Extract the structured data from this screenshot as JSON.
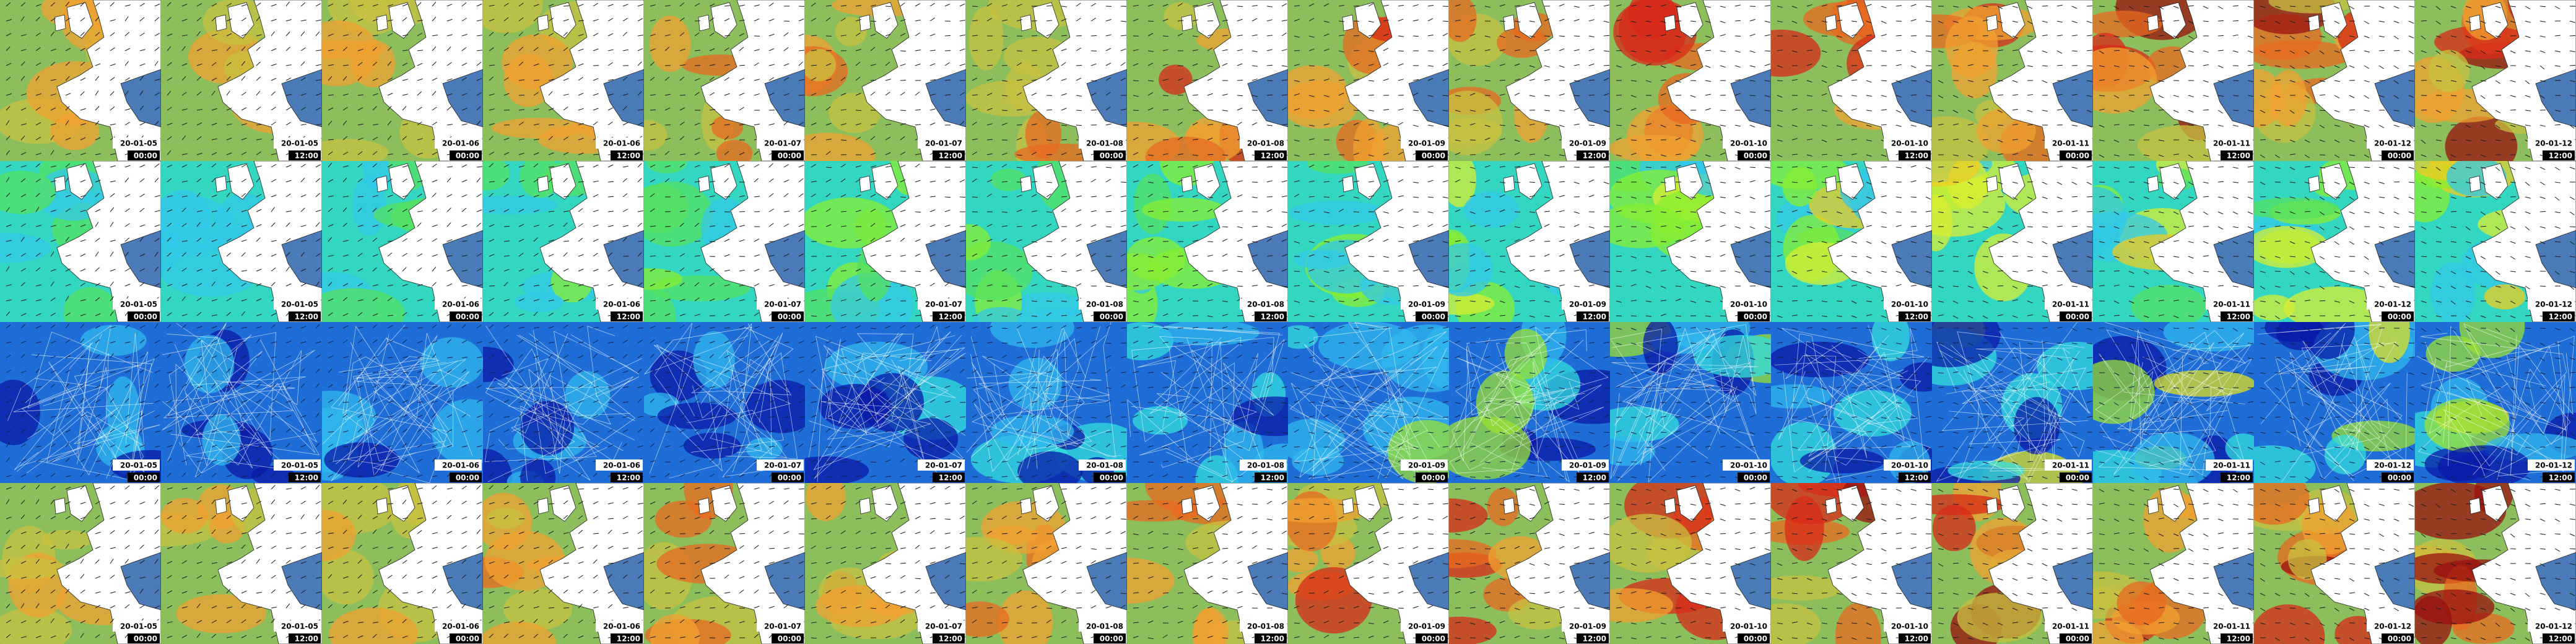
{
  "rows": [
    {
      "tiles": [
        {
          "date": "20-01-05",
          "time": "00:00"
        },
        {
          "date": "20-01-05",
          "time": "12:00"
        },
        {
          "date": "20-01-06",
          "time": "00:00"
        },
        {
          "date": "20-01-06",
          "time": "12:00"
        },
        {
          "date": "20-01-07",
          "time": "00:00"
        },
        {
          "date": "20-01-07",
          "time": "12:00"
        },
        {
          "date": "20-01-08",
          "time": "00:00"
        },
        {
          "date": "20-01-08",
          "time": "12:00"
        },
        {
          "date": "20-01-09",
          "time": "00:00"
        },
        {
          "date": "20-01-09",
          "time": "12:00"
        },
        {
          "date": "20-01-10",
          "time": "00:00"
        },
        {
          "date": "20-01-10",
          "time": "12:00"
        },
        {
          "date": "20-01-11",
          "time": "00:00"
        },
        {
          "date": "20-01-11",
          "time": "12:00"
        },
        {
          "date": "20-01-12",
          "time": "00:00"
        },
        {
          "date": "20-01-12",
          "time": "12:00"
        }
      ]
    },
    {
      "tiles": [
        {
          "date": "20-01-05",
          "time": "00:00"
        },
        {
          "date": "20-01-05",
          "time": "12:00"
        },
        {
          "date": "20-01-06",
          "time": "00:00"
        },
        {
          "date": "20-01-06",
          "time": "12:00"
        },
        {
          "date": "20-01-07",
          "time": "00:00"
        },
        {
          "date": "20-01-07",
          "time": "12:00"
        },
        {
          "date": "20-01-08",
          "time": "00:00"
        },
        {
          "date": "20-01-08",
          "time": "12:00"
        },
        {
          "date": "20-01-09",
          "time": "00:00"
        },
        {
          "date": "20-01-09",
          "time": "12:00"
        },
        {
          "date": "20-01-10",
          "time": "00:00"
        },
        {
          "date": "20-01-10",
          "time": "12:00"
        },
        {
          "date": "20-01-11",
          "time": "00:00"
        },
        {
          "date": "20-01-11",
          "time": "12:00"
        },
        {
          "date": "20-01-12",
          "time": "00:00"
        },
        {
          "date": "20-01-12",
          "time": "12:00"
        }
      ]
    },
    {
      "tiles": [
        {
          "date": "20-01-05",
          "time": "00:00"
        },
        {
          "date": "20-01-05",
          "time": "12:00"
        },
        {
          "date": "20-01-06",
          "time": "00:00"
        },
        {
          "date": "20-01-06",
          "time": "12:00"
        },
        {
          "date": "20-01-07",
          "time": "00:00"
        },
        {
          "date": "20-01-07",
          "time": "12:00"
        },
        {
          "date": "20-01-08",
          "time": "00:00"
        },
        {
          "date": "20-01-08",
          "time": "12:00"
        },
        {
          "date": "20-01-09",
          "time": "00:00"
        },
        {
          "date": "20-01-09",
          "time": "12:00"
        },
        {
          "date": "20-01-10",
          "time": "00:00"
        },
        {
          "date": "20-01-10",
          "time": "12:00"
        },
        {
          "date": "20-01-11",
          "time": "00:00"
        },
        {
          "date": "20-01-11",
          "time": "12:00"
        },
        {
          "date": "20-01-12",
          "time": "00:00"
        },
        {
          "date": "20-01-12",
          "time": "12:00"
        }
      ]
    },
    {
      "tiles": [
        {
          "date": "20-01-05",
          "time": "00:00"
        },
        {
          "date": "20-01-05",
          "time": "12:00"
        },
        {
          "date": "20-01-06",
          "time": "00:00"
        },
        {
          "date": "20-01-06",
          "time": "12:00"
        },
        {
          "date": "20-01-07",
          "time": "00:00"
        },
        {
          "date": "20-01-07",
          "time": "12:00"
        },
        {
          "date": "20-01-08",
          "time": "00:00"
        },
        {
          "date": "20-01-08",
          "time": "12:00"
        },
        {
          "date": "20-01-09",
          "time": "00:00"
        },
        {
          "date": "20-01-09",
          "time": "12:00"
        },
        {
          "date": "20-01-10",
          "time": "00:00"
        },
        {
          "date": "20-01-10",
          "time": "12:00"
        },
        {
          "date": "20-01-11",
          "time": "00:00"
        },
        {
          "date": "20-01-11",
          "time": "12:00"
        },
        {
          "date": "20-01-12",
          "time": "00:00"
        },
        {
          "date": "20-01-12",
          "time": "12:00"
        }
      ]
    }
  ]
}
